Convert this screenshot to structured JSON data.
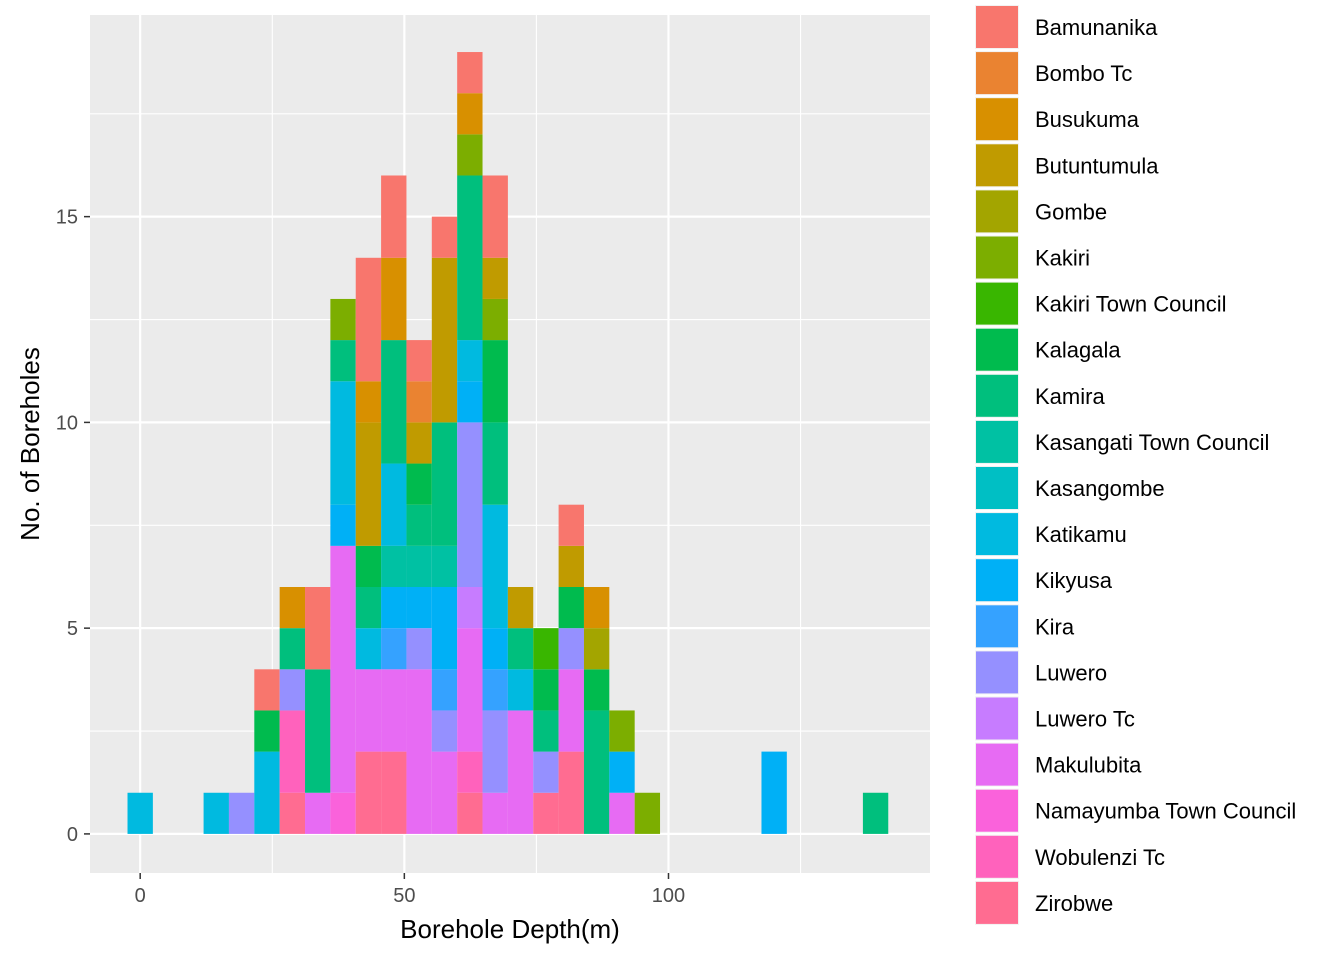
{
  "chart_data": {
    "type": "bar",
    "subtype": "stacked-histogram",
    "xlabel": "Borehole Depth(m)",
    "ylabel": "No. of Boreholes",
    "xlim": [
      -9.5,
      149.5
    ],
    "ylim": [
      -0.95,
      19.9
    ],
    "x_ticks": [
      0,
      50,
      100
    ],
    "x_tick_labels": [
      "0",
      "50",
      "100"
    ],
    "y_ticks": [
      0,
      5,
      10,
      15
    ],
    "y_tick_labels": [
      "0",
      "5",
      "10",
      "15"
    ],
    "bin_width": 4.8,
    "legend_position": "right",
    "grid": true,
    "panel_background": "#ebebeb",
    "series": [
      {
        "name": "Bamunanika",
        "color": "#F8766D"
      },
      {
        "name": "Bombo Tc",
        "color": "#EA8331"
      },
      {
        "name": "Busukuma",
        "color": "#D89000"
      },
      {
        "name": "Butuntumula",
        "color": "#C09B00"
      },
      {
        "name": "Gombe",
        "color": "#A3A500"
      },
      {
        "name": "Kakiri",
        "color": "#7CAE00"
      },
      {
        "name": "Kakiri Town Council",
        "color": "#39B600"
      },
      {
        "name": "Kalagala",
        "color": "#00BB4E"
      },
      {
        "name": "Kamira",
        "color": "#00BF7D"
      },
      {
        "name": "Kasangati Town Council",
        "color": "#00C1A3"
      },
      {
        "name": "Kasangombe",
        "color": "#00BFC4"
      },
      {
        "name": "Katikamu",
        "color": "#00BAE0"
      },
      {
        "name": "Kikyusa",
        "color": "#00B0F6"
      },
      {
        "name": "Kira",
        "color": "#35A2FF"
      },
      {
        "name": "Luwero",
        "color": "#9590FF"
      },
      {
        "name": "Luwero Tc",
        "color": "#C77CFF"
      },
      {
        "name": "Makulubita",
        "color": "#E76BF3"
      },
      {
        "name": "Namayumba Town Council",
        "color": "#FA62DB"
      },
      {
        "name": "Wobulenzi Tc",
        "color": "#FF62BC"
      },
      {
        "name": "Zirobwe",
        "color": "#FF6C91"
      }
    ],
    "bins": [
      {
        "x": 0,
        "stack": [
          [
            "Katikamu",
            1
          ]
        ]
      },
      {
        "x": 14.4,
        "stack": [
          [
            "Katikamu",
            1
          ]
        ]
      },
      {
        "x": 19.2,
        "stack": [
          [
            "Luwero",
            1
          ]
        ]
      },
      {
        "x": 24,
        "stack": [
          [
            "Katikamu",
            2
          ],
          [
            "Kalagala",
            1
          ],
          [
            "Bamunanika",
            1
          ]
        ]
      },
      {
        "x": 28.8,
        "stack": [
          [
            "Zirobwe",
            1
          ],
          [
            "Wobulenzi Tc",
            2
          ],
          [
            "Luwero",
            1
          ],
          [
            "Kamira",
            1
          ],
          [
            "Busukuma",
            1
          ]
        ]
      },
      {
        "x": 33.6,
        "stack": [
          [
            "Makulubita",
            1
          ],
          [
            "Kamira",
            3
          ],
          [
            "Bamunanika",
            2
          ]
        ]
      },
      {
        "x": 38.4,
        "stack": [
          [
            "Namayumba Town Council",
            1
          ],
          [
            "Makulubita",
            6
          ],
          [
            "Kikyusa",
            1
          ],
          [
            "Katikamu",
            3
          ],
          [
            "Kamira",
            1
          ],
          [
            "Kakiri",
            1
          ]
        ]
      },
      {
        "x": 43.2,
        "stack": [
          [
            "Zirobwe",
            2
          ],
          [
            "Makulubita",
            2
          ],
          [
            "Katikamu",
            1
          ],
          [
            "Kamira",
            1
          ],
          [
            "Kalagala",
            1
          ],
          [
            "Butuntumula",
            3
          ],
          [
            "Busukuma",
            1
          ],
          [
            "Bamunanika",
            3
          ]
        ]
      },
      {
        "x": 48,
        "stack": [
          [
            "Zirobwe",
            2
          ],
          [
            "Makulubita",
            2
          ],
          [
            "Kira",
            1
          ],
          [
            "Kikyusa",
            1
          ],
          [
            "Kasangati Town Council",
            1
          ],
          [
            "Katikamu",
            2
          ],
          [
            "Kamira",
            3
          ],
          [
            "Busukuma",
            2
          ],
          [
            "Bamunanika",
            2
          ]
        ]
      },
      {
        "x": 52.8,
        "stack": [
          [
            "Makulubita",
            4
          ],
          [
            "Luwero",
            1
          ],
          [
            "Kikyusa",
            1
          ],
          [
            "Kasangati Town Council",
            1
          ],
          [
            "Kamira",
            1
          ],
          [
            "Kalagala",
            1
          ],
          [
            "Butuntumula",
            1
          ],
          [
            "Bombo Tc",
            1
          ],
          [
            "Bamunanika",
            1
          ]
        ]
      },
      {
        "x": 57.6,
        "stack": [
          [
            "Makulubita",
            2
          ],
          [
            "Luwero",
            1
          ],
          [
            "Kira",
            1
          ],
          [
            "Kikyusa",
            2
          ],
          [
            "Kasangati Town Council",
            1
          ],
          [
            "Kamira",
            3
          ],
          [
            "Butuntumula",
            4
          ],
          [
            "Bamunanika",
            1
          ]
        ]
      },
      {
        "x": 62.4,
        "stack": [
          [
            "Zirobwe",
            1
          ],
          [
            "Wobulenzi Tc",
            1
          ],
          [
            "Makulubita",
            3
          ],
          [
            "Luwero Tc",
            1
          ],
          [
            "Luwero",
            4
          ],
          [
            "Kikyusa",
            1
          ],
          [
            "Katikamu",
            1
          ],
          [
            "Kamira",
            4
          ],
          [
            "Kakiri",
            1
          ],
          [
            "Busukuma",
            1
          ],
          [
            "Bamunanika",
            1
          ]
        ]
      },
      {
        "x": 67.2,
        "stack": [
          [
            "Makulubita",
            1
          ],
          [
            "Luwero",
            2
          ],
          [
            "Kira",
            1
          ],
          [
            "Kikyusa",
            1
          ],
          [
            "Katikamu",
            3
          ],
          [
            "Kamira",
            2
          ],
          [
            "Kalagala",
            2
          ],
          [
            "Kakiri",
            1
          ],
          [
            "Butuntumula",
            1
          ],
          [
            "Bamunanika",
            2
          ]
        ]
      },
      {
        "x": 72,
        "stack": [
          [
            "Makulubita",
            3
          ],
          [
            "Katikamu",
            1
          ],
          [
            "Kamira",
            1
          ],
          [
            "Butuntumula",
            1
          ]
        ]
      },
      {
        "x": 76.8,
        "stack": [
          [
            "Zirobwe",
            1
          ],
          [
            "Luwero",
            1
          ],
          [
            "Kamira",
            1
          ],
          [
            "Kalagala",
            1
          ],
          [
            "Kakiri Town Council",
            1
          ]
        ]
      },
      {
        "x": 81.6,
        "stack": [
          [
            "Zirobwe",
            2
          ],
          [
            "Makulubita",
            2
          ],
          [
            "Luwero",
            1
          ],
          [
            "Kalagala",
            1
          ],
          [
            "Butuntumula",
            1
          ],
          [
            "Bamunanika",
            1
          ]
        ]
      },
      {
        "x": 86.4,
        "stack": [
          [
            "Kamira",
            3
          ],
          [
            "Kalagala",
            1
          ],
          [
            "Gombe",
            1
          ],
          [
            "Busukuma",
            1
          ]
        ]
      },
      {
        "x": 91.2,
        "stack": [
          [
            "Makulubita",
            1
          ],
          [
            "Kikyusa",
            1
          ],
          [
            "Kakiri",
            1
          ]
        ]
      },
      {
        "x": 96,
        "stack": [
          [
            "Kakiri",
            1
          ]
        ]
      },
      {
        "x": 120,
        "stack": [
          [
            "Kikyusa",
            2
          ]
        ]
      },
      {
        "x": 139.2,
        "stack": [
          [
            "Kamira",
            1
          ]
        ]
      }
    ]
  }
}
